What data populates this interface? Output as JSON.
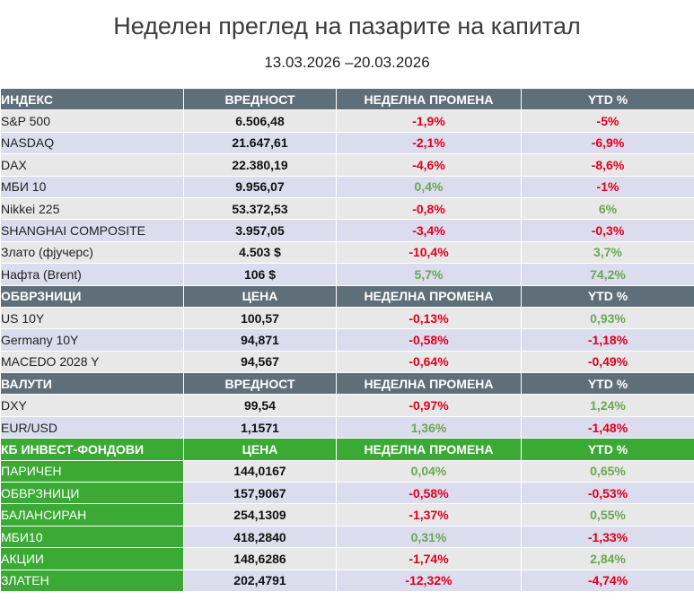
{
  "title": "Неделен преглед на пазарите на капитал",
  "subtitle": "13.03.2026 –20.03.2026",
  "colors": {
    "header_gray": "#5f6f79",
    "header_green": "#3aaa35",
    "negative": "#e0001b",
    "positive": "#6aa84f"
  },
  "sections": [
    {
      "headers": [
        "ИНДЕКС",
        "ВРЕДНОСТ",
        "НЕДЕЛНА ПРОМЕНА",
        "YTD %"
      ],
      "style": "gray",
      "rows": [
        {
          "name": "S&P 500",
          "value": "6.506,48",
          "weekly": "-1,9%",
          "ytd": "-5%"
        },
        {
          "name": "NASDAQ",
          "value": "21.647,61",
          "weekly": "-2,1%",
          "ytd": "-6,9%"
        },
        {
          "name": "DAX",
          "value": "22.380,19",
          "weekly": "-4,6%",
          "ytd": "-8,6%"
        },
        {
          "name": "МБИ 10",
          "value": "9.956,07",
          "weekly": "0,4%",
          "ytd": "-1%"
        },
        {
          "name": "Nikkei 225",
          "value": "53.372,53",
          "weekly": "-0,8%",
          "ytd": "6%"
        },
        {
          "name": "SHANGHAI COMPOSITE",
          "value": "3.957,05",
          "weekly": "-3,4%",
          "ytd": "-0,3%"
        },
        {
          "name": "Злато (фјучерс)",
          "value": "4.503 $",
          "weekly": "-10,4%",
          "ytd": "3,7%"
        },
        {
          "name": "Нафта (Brent)",
          "value": "106 $",
          "weekly": "5,7%",
          "ytd": "74,2%"
        }
      ]
    },
    {
      "headers": [
        "ОБВРЗНИЦИ",
        "ЦЕНА",
        "НЕДЕЛНА ПРОМЕНА",
        "YTD %"
      ],
      "style": "gray",
      "rows": [
        {
          "name": "US 10Y",
          "value": "100,57",
          "weekly": "-0,13%",
          "ytd": "0,93%"
        },
        {
          "name": "Germany 10Y",
          "value": "94,871",
          "weekly": "-0,58%",
          "ytd": "-1,18%"
        },
        {
          "name": "MACEDO 2028 Y",
          "value": "94,567",
          "weekly": "-0,64%",
          "ytd": "-0,49%"
        }
      ]
    },
    {
      "headers": [
        "ВАЛУТИ",
        "ВРЕДНОСТ",
        "НЕДЕЛНА ПРОМЕНА",
        "YTD %"
      ],
      "style": "gray",
      "rows": [
        {
          "name": "DXY",
          "value": "99,54",
          "weekly": "-0,97%",
          "ytd": "1,24%"
        },
        {
          "name": "EUR/USD",
          "value": "1,1571",
          "weekly": "1,36%",
          "ytd": "-1,48%"
        }
      ]
    },
    {
      "headers": [
        "КБ ИНВЕСТ-ФОНДОВИ",
        "ЦЕНА",
        "НЕДЕЛНА ПРОМЕНА",
        "YTD %"
      ],
      "style": "green",
      "rows": [
        {
          "name": "ПАРИЧЕН",
          "value": "144,0167",
          "weekly": "0,04%",
          "ytd": "0,65%"
        },
        {
          "name": "ОБВРЗНИЦИ",
          "value": "157,9067",
          "weekly": "-0,58%",
          "ytd": "-0,53%"
        },
        {
          "name": "БАЛАНСИРАН",
          "value": "254,1309",
          "weekly": "-1,37%",
          "ytd": "0,55%"
        },
        {
          "name": "МБИ10",
          "value": "418,2840",
          "weekly": "0,31%",
          "ytd": "-1,33%"
        },
        {
          "name": "АКЦИИ",
          "value": "148,6286",
          "weekly": "-1,74%",
          "ytd": "2,84%"
        },
        {
          "name": "ЗЛАТЕН",
          "value": "202,4791",
          "weekly": "-12,32%",
          "ytd": "-4,74%"
        }
      ]
    }
  ]
}
